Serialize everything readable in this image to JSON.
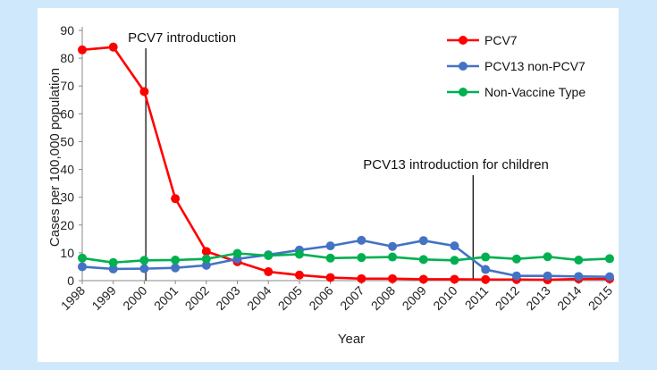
{
  "chart_data": {
    "type": "line",
    "title": "",
    "xlabel": "Year",
    "ylabel": "Cases per 100,000 population",
    "ylim": [
      0,
      90
    ],
    "yticks": [
      "0",
      "10",
      "20",
      "30",
      "40",
      "50",
      "60",
      "70",
      "80",
      "90"
    ],
    "categories": [
      "1998",
      "1999",
      "2000",
      "2001",
      "2002",
      "2003",
      "2004",
      "2005",
      "2006",
      "2007",
      "2008",
      "2009",
      "2010",
      "2011",
      "2012",
      "2013",
      "2014",
      "2015"
    ],
    "series": [
      {
        "name": "PCV7",
        "color": "#ff0000",
        "values": [
          83,
          84,
          68,
          29.5,
          10.5,
          6.8,
          3.2,
          2.0,
          1.1,
          0.7,
          0.7,
          0.5,
          0.5,
          0.4,
          0.4,
          0.3,
          0.6,
          0.6
        ]
      },
      {
        "name": "PCV13 non-PCV7",
        "color": "#4472c4",
        "values": [
          5.0,
          4.2,
          4.3,
          4.6,
          5.5,
          7.8,
          9.3,
          11.0,
          12.5,
          14.5,
          12.3,
          14.4,
          12.5,
          4.0,
          1.7,
          1.7,
          1.5,
          1.4
        ]
      },
      {
        "name": "Non-Vaccine Type",
        "color": "#00b050",
        "values": [
          8.1,
          6.5,
          7.3,
          7.4,
          7.8,
          9.8,
          9.0,
          9.5,
          8.1,
          8.3,
          8.5,
          7.6,
          7.3,
          8.5,
          7.8,
          8.6,
          7.4,
          7.9
        ]
      }
    ],
    "annotations": [
      {
        "text": "PCV7 introduction",
        "x_year": 2000.05
      },
      {
        "text": "PCV13 introduction for children",
        "x_year": 2010.6
      }
    ],
    "legend_position": "top-right"
  }
}
